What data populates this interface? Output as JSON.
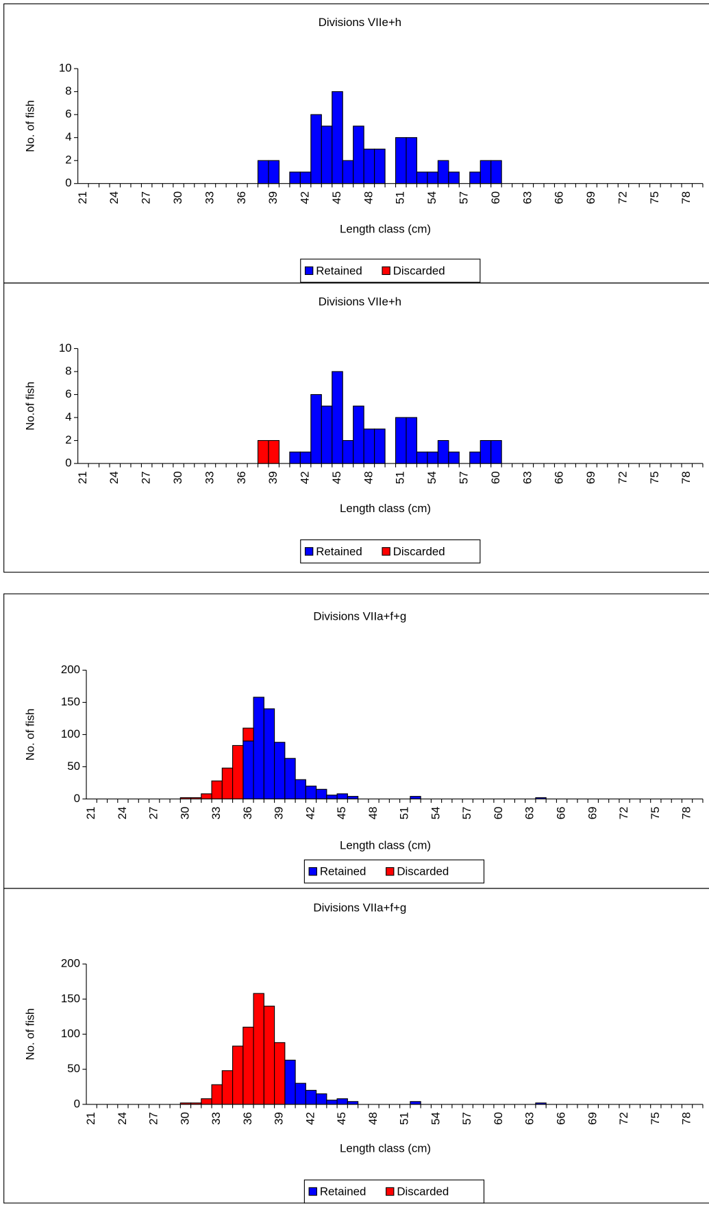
{
  "chart_data": [
    {
      "type": "bar",
      "stacked": true,
      "title": "Divisions VIIe+h",
      "xlabel": "Length class (cm)",
      "ylabel": "No. of fish",
      "legend": "bottom",
      "categories": [
        "21",
        null,
        null,
        "24",
        null,
        null,
        "27",
        null,
        null,
        "30",
        null,
        null,
        "33",
        null,
        null,
        "36",
        null,
        null,
        "39",
        null,
        null,
        "42",
        null,
        null,
        "45",
        null,
        null,
        "48",
        null,
        null,
        "51",
        null,
        null,
        "54",
        null,
        null,
        "57",
        null,
        null,
        "60",
        null,
        null,
        "63",
        null,
        null,
        "66",
        null,
        null,
        "69",
        null,
        null,
        "72",
        null,
        null,
        "75",
        null,
        null,
        "78",
        null
      ],
      "series": [
        {
          "name": "Retained",
          "color": "#0000ff",
          "values": [
            0,
            0,
            0,
            0,
            0,
            0,
            0,
            0,
            0,
            0,
            0,
            0,
            0,
            0,
            0,
            0,
            0,
            2,
            2,
            0,
            1,
            1,
            6,
            5,
            8,
            2,
            5,
            3,
            3,
            0,
            4,
            4,
            1,
            1,
            2,
            1,
            0,
            1,
            2,
            2,
            0,
            0,
            0,
            0,
            0,
            0,
            0,
            0,
            0,
            0,
            0,
            0,
            0,
            0,
            0,
            0,
            0,
            0,
            0
          ]
        },
        {
          "name": "Discarded",
          "color": "#ff0000",
          "values": [
            0,
            0,
            0,
            0,
            0,
            0,
            0,
            0,
            0,
            0,
            0,
            0,
            0,
            0,
            0,
            0,
            0,
            0,
            0,
            0,
            0,
            0,
            0,
            0,
            0,
            0,
            0,
            0,
            0,
            0,
            0,
            0,
            0,
            0,
            0,
            0,
            0,
            0,
            0,
            0,
            0,
            0,
            0,
            0,
            0,
            0,
            0,
            0,
            0,
            0,
            0,
            0,
            0,
            0,
            0,
            0,
            0,
            0,
            0
          ]
        }
      ],
      "ylim": [
        0,
        10
      ],
      "yticks": [
        0,
        2,
        4,
        6,
        8,
        10
      ]
    },
    {
      "type": "bar",
      "stacked": true,
      "title": "Divisions VIIe+h",
      "xlabel": "Length class (cm)",
      "ylabel": "No.of fish",
      "legend": "bottom",
      "categories": [
        "21",
        null,
        null,
        "24",
        null,
        null,
        "27",
        null,
        null,
        "30",
        null,
        null,
        "33",
        null,
        null,
        "36",
        null,
        null,
        "39",
        null,
        null,
        "42",
        null,
        null,
        "45",
        null,
        null,
        "48",
        null,
        null,
        "51",
        null,
        null,
        "54",
        null,
        null,
        "57",
        null,
        null,
        "60",
        null,
        null,
        "63",
        null,
        null,
        "66",
        null,
        null,
        "69",
        null,
        null,
        "72",
        null,
        null,
        "75",
        null,
        null,
        "78",
        null
      ],
      "series": [
        {
          "name": "Retained",
          "color": "#0000ff",
          "values": [
            0,
            0,
            0,
            0,
            0,
            0,
            0,
            0,
            0,
            0,
            0,
            0,
            0,
            0,
            0,
            0,
            0,
            0,
            0,
            0,
            1,
            1,
            6,
            5,
            8,
            2,
            5,
            3,
            3,
            0,
            4,
            4,
            1,
            1,
            2,
            1,
            0,
            1,
            2,
            2,
            0,
            0,
            0,
            0,
            0,
            0,
            0,
            0,
            0,
            0,
            0,
            0,
            0,
            0,
            0,
            0,
            0,
            0,
            0
          ]
        },
        {
          "name": "Discarded",
          "color": "#ff0000",
          "values": [
            0,
            0,
            0,
            0,
            0,
            0,
            0,
            0,
            0,
            0,
            0,
            0,
            0,
            0,
            0,
            0,
            0,
            2,
            2,
            0,
            0,
            0,
            0,
            0,
            0,
            0,
            0,
            0,
            0,
            0,
            0,
            0,
            0,
            0,
            0,
            0,
            0,
            0,
            0,
            0,
            0,
            0,
            0,
            0,
            0,
            0,
            0,
            0,
            0,
            0,
            0,
            0,
            0,
            0,
            0,
            0,
            0,
            0,
            0
          ]
        }
      ],
      "ylim": [
        0,
        10
      ],
      "yticks": [
        0,
        2,
        4,
        6,
        8,
        10
      ]
    },
    {
      "type": "bar",
      "stacked": true,
      "title": "Divisions VIIa+f+g",
      "xlabel": "Length class (cm)",
      "ylabel": "No. of fish",
      "legend": "bottom",
      "categories": [
        "21",
        null,
        null,
        "24",
        null,
        null,
        "27",
        null,
        null,
        "30",
        null,
        null,
        "33",
        null,
        null,
        "36",
        null,
        null,
        "39",
        null,
        null,
        "42",
        null,
        null,
        "45",
        null,
        null,
        "48",
        null,
        null,
        "51",
        null,
        null,
        "54",
        null,
        null,
        "57",
        null,
        null,
        "60",
        null,
        null,
        "63",
        null,
        null,
        "66",
        null,
        null,
        "69",
        null,
        null,
        "72",
        null,
        null,
        "75",
        null,
        null,
        "78",
        null
      ],
      "series": [
        {
          "name": "Retained",
          "color": "#0000ff",
          "values": [
            0,
            0,
            0,
            0,
            0,
            0,
            0,
            0,
            0,
            0,
            0,
            0,
            0,
            0,
            0,
            90,
            158,
            140,
            88,
            63,
            30,
            20,
            15,
            6,
            8,
            4,
            0,
            0,
            0,
            0,
            0,
            4,
            0,
            0,
            0,
            0,
            0,
            0,
            0,
            0,
            0,
            0,
            0,
            2,
            0,
            0,
            0,
            0,
            0,
            0,
            0,
            0,
            0,
            0,
            0,
            0,
            0,
            0,
            0
          ]
        },
        {
          "name": "Discarded",
          "color": "#ff0000",
          "values": [
            0,
            0,
            0,
            0,
            0,
            0,
            0,
            0,
            0,
            2,
            2,
            8,
            28,
            48,
            83,
            20,
            0,
            0,
            0,
            0,
            0,
            0,
            0,
            0,
            0,
            0,
            0,
            0,
            0,
            0,
            0,
            0,
            0,
            0,
            0,
            0,
            0,
            0,
            0,
            0,
            0,
            0,
            0,
            0,
            0,
            0,
            0,
            0,
            0,
            0,
            0,
            0,
            0,
            0,
            0,
            0,
            0,
            0,
            0
          ]
        }
      ],
      "ylim": [
        0,
        200
      ],
      "yticks": [
        0,
        50,
        100,
        150,
        200
      ]
    },
    {
      "type": "bar",
      "stacked": true,
      "title": "Divisions VIIa+f+g",
      "xlabel": "Length class (cm)",
      "ylabel": "No. of fish",
      "legend": "bottom",
      "categories": [
        "21",
        null,
        null,
        "24",
        null,
        null,
        "27",
        null,
        null,
        "30",
        null,
        null,
        "33",
        null,
        null,
        "36",
        null,
        null,
        "39",
        null,
        null,
        "42",
        null,
        null,
        "45",
        null,
        null,
        "48",
        null,
        null,
        "51",
        null,
        null,
        "54",
        null,
        null,
        "57",
        null,
        null,
        "60",
        null,
        null,
        "63",
        null,
        null,
        "66",
        null,
        null,
        "69",
        null,
        null,
        "72",
        null,
        null,
        "75",
        null,
        null,
        "78",
        null
      ],
      "series": [
        {
          "name": "Retained",
          "color": "#0000ff",
          "values": [
            0,
            0,
            0,
            0,
            0,
            0,
            0,
            0,
            0,
            0,
            0,
            0,
            0,
            0,
            0,
            0,
            0,
            0,
            0,
            63,
            30,
            20,
            15,
            6,
            8,
            4,
            0,
            0,
            0,
            0,
            0,
            4,
            0,
            0,
            0,
            0,
            0,
            0,
            0,
            0,
            0,
            0,
            0,
            2,
            0,
            0,
            0,
            0,
            0,
            0,
            0,
            0,
            0,
            0,
            0,
            0,
            0,
            0,
            0
          ]
        },
        {
          "name": "Discarded",
          "color": "#ff0000",
          "values": [
            0,
            0,
            0,
            0,
            0,
            0,
            0,
            0,
            0,
            2,
            2,
            8,
            28,
            48,
            83,
            110,
            158,
            140,
            88,
            0,
            0,
            0,
            0,
            0,
            0,
            0,
            0,
            0,
            0,
            0,
            0,
            0,
            0,
            0,
            0,
            0,
            0,
            0,
            0,
            0,
            0,
            0,
            0,
            0,
            0,
            0,
            0,
            0,
            0,
            0,
            0,
            0,
            0,
            0,
            0,
            0,
            0,
            0,
            0
          ]
        }
      ],
      "ylim": [
        0,
        200
      ],
      "yticks": [
        0,
        50,
        100,
        150,
        200
      ]
    }
  ]
}
